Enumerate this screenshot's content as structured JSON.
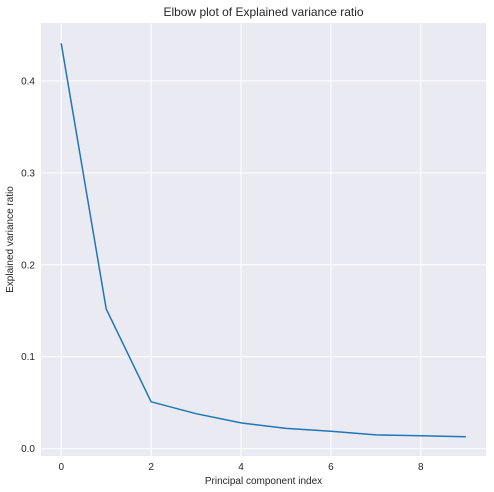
{
  "chart_data": {
    "type": "line",
    "title": "Elbow plot of Explained variance ratio",
    "xlabel": "Principal component index",
    "ylabel": "Explained variance ratio",
    "x": [
      0,
      1,
      2,
      3,
      4,
      5,
      6,
      7,
      8,
      9
    ],
    "series": [
      {
        "values": [
          0.441,
          0.152,
          0.051,
          0.038,
          0.028,
          0.022,
          0.019,
          0.015,
          0.014,
          0.013
        ]
      }
    ],
    "xlim": [
      -0.45,
      9.45
    ],
    "ylim": [
      -0.008,
      0.463
    ],
    "xticks": [
      0,
      2,
      4,
      6,
      8
    ],
    "yticks": [
      0.0,
      0.1,
      0.2,
      0.3,
      0.4
    ],
    "xtick_labels": [
      "0",
      "2",
      "4",
      "6",
      "8"
    ],
    "ytick_labels": [
      "0.0",
      "0.1",
      "0.2",
      "0.3",
      "0.4"
    ],
    "grid": true,
    "background": "#eaeaf2",
    "line_color": "#1f77b4",
    "grid_color": "#ffffff"
  }
}
